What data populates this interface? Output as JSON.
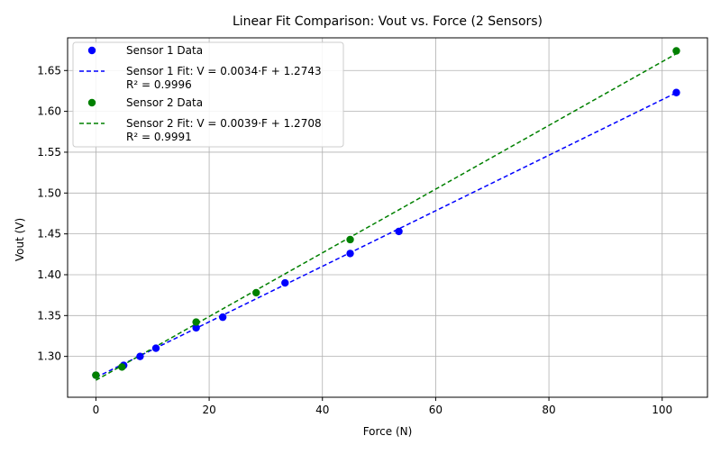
{
  "chart_data": {
    "type": "scatter",
    "title": "Linear Fit Comparison: Vout vs. Force (2 Sensors)",
    "xlabel": "Force (N)",
    "ylabel": "Vout (V)",
    "xlim": [
      -5,
      108
    ],
    "ylim": [
      1.25,
      1.69
    ],
    "xticks": [
      0,
      20,
      40,
      60,
      80,
      100
    ],
    "yticks": [
      1.3,
      1.35,
      1.4,
      1.45,
      1.5,
      1.55,
      1.6,
      1.65
    ],
    "xtick_labels": [
      "0",
      "20",
      "40",
      "60",
      "80",
      "100"
    ],
    "ytick_labels": [
      "1.30",
      "1.35",
      "1.40",
      "1.45",
      "1.50",
      "1.55",
      "1.60",
      "1.65"
    ],
    "grid": true,
    "legend_position": "top-left",
    "series": [
      {
        "name": "Sensor 1 Data",
        "kind": "scatter",
        "color": "#0000ff",
        "x": [
          0,
          4.9,
          7.8,
          10.6,
          17.7,
          22.4,
          33.4,
          44.9,
          53.5,
          102.5
        ],
        "y": [
          1.277,
          1.289,
          1.3,
          1.31,
          1.335,
          1.348,
          1.39,
          1.426,
          1.453,
          1.623
        ]
      },
      {
        "name_line1": "Sensor 1 Fit: V = 0.0034·F + 1.2743",
        "name_line2": "R² = 0.9996",
        "kind": "fit",
        "color": "#0000ff",
        "slope": 0.0034,
        "intercept": 1.2743,
        "x_range": [
          0,
          102.5
        ]
      },
      {
        "name": "Sensor 2 Data",
        "kind": "scatter",
        "color": "#008000",
        "x": [
          0,
          4.6,
          17.7,
          28.3,
          44.9,
          102.5
        ],
        "y": [
          1.277,
          1.287,
          1.342,
          1.378,
          1.443,
          1.674
        ]
      },
      {
        "name_line1": "Sensor 2 Fit: V = 0.0039·F + 1.2708",
        "name_line2": "R² = 0.9991",
        "kind": "fit",
        "color": "#008000",
        "slope": 0.0039,
        "intercept": 1.2708,
        "x_range": [
          0,
          102.5
        ]
      }
    ]
  }
}
